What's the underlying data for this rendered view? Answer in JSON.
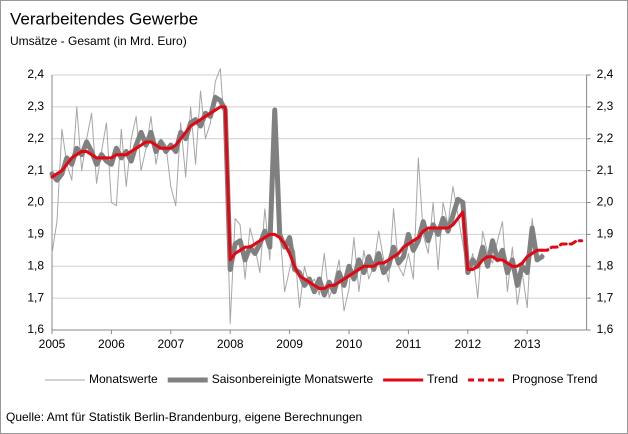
{
  "chart_data": {
    "type": "line",
    "title": "Verarbeitendes Gewerbe",
    "subtitle": "Umsätze - Gesamt (in Mrd. Euro)",
    "source": "Quelle: Amt für Statistik Berlin-Brandenburg, eigene Berechnungen",
    "categories": [
      "2005",
      null,
      null,
      null,
      null,
      null,
      null,
      null,
      null,
      null,
      null,
      null,
      "2006",
      null,
      null,
      null,
      null,
      null,
      null,
      null,
      null,
      null,
      null,
      null,
      "2007",
      null,
      null,
      null,
      null,
      null,
      null,
      null,
      null,
      null,
      null,
      null,
      "2008",
      null,
      null,
      null,
      null,
      null,
      null,
      null,
      null,
      null,
      null,
      null,
      "2009",
      null,
      null,
      null,
      null,
      null,
      null,
      null,
      null,
      null,
      null,
      null,
      "2010",
      null,
      null,
      null,
      null,
      null,
      null,
      null,
      null,
      null,
      null,
      null,
      "2011",
      null,
      null,
      null,
      null,
      null,
      null,
      null,
      null,
      null,
      null,
      null,
      "2012",
      null,
      null,
      null,
      null,
      null,
      null,
      null,
      null,
      null,
      null,
      null,
      "2013",
      null,
      null,
      null,
      null,
      null,
      null,
      null,
      null,
      null,
      null,
      null
    ],
    "ylim": [
      1.6,
      2.4
    ],
    "yticks": [
      {
        "value": 1.6,
        "label": "1,6"
      },
      {
        "value": 1.7,
        "label": "1,7"
      },
      {
        "value": 1.8,
        "label": "1,8"
      },
      {
        "value": 1.9,
        "label": "1,9"
      },
      {
        "value": 2.0,
        "label": "2,0"
      },
      {
        "value": 2.1,
        "label": "2,1"
      },
      {
        "value": 2.2,
        "label": "2,2"
      },
      {
        "value": 2.3,
        "label": "2,3"
      },
      {
        "value": 2.4,
        "label": "2,4"
      }
    ],
    "y2lim": [
      1.6,
      2.4
    ],
    "y2ticks": [
      {
        "value": 1.6,
        "label": "1,6"
      },
      {
        "value": 1.7,
        "label": "1,7"
      },
      {
        "value": 1.8,
        "label": "1,8"
      },
      {
        "value": 1.9,
        "label": "1,9"
      },
      {
        "value": 2.0,
        "label": "2,0"
      },
      {
        "value": 2.1,
        "label": "2,1"
      },
      {
        "value": 2.2,
        "label": "2,2"
      },
      {
        "value": 2.3,
        "label": "2,3"
      },
      {
        "value": 2.4,
        "label": "2,4"
      }
    ],
    "grid": true,
    "legend": "bottom",
    "series": [
      {
        "name": "Monatswerte",
        "color": "#a6a6a6",
        "values": [
          1.84,
          1.94,
          2.23,
          2.12,
          2.07,
          2.3,
          2.1,
          2.2,
          2.28,
          2.06,
          2.16,
          2.25,
          2.0,
          1.99,
          2.23,
          2.05,
          2.2,
          2.27,
          2.1,
          2.17,
          2.27,
          2.12,
          2.2,
          2.18,
          2.05,
          1.99,
          2.25,
          2.08,
          2.3,
          2.12,
          2.35,
          2.2,
          2.25,
          2.38,
          2.42,
          2.2,
          1.62,
          1.95,
          1.93,
          1.76,
          1.92,
          1.86,
          1.78,
          1.98,
          1.82,
          2.2,
          1.92,
          1.72,
          1.79,
          1.85,
          1.67,
          1.8,
          1.74,
          1.76,
          1.71,
          1.84,
          1.7,
          1.75,
          1.82,
          1.66,
          1.73,
          1.89,
          1.72,
          1.85,
          1.76,
          1.8,
          1.91,
          1.82,
          1.75,
          1.98,
          1.8,
          1.77,
          1.84,
          1.76,
          2.14,
          1.9,
          1.84,
          2.0,
          1.79,
          2.0,
          1.93,
          2.05,
          1.96,
          1.87,
          1.78,
          1.84,
          1.7,
          1.91,
          1.84,
          1.81,
          1.88,
          1.94,
          1.72,
          1.86,
          1.68,
          1.78,
          1.67,
          1.95,
          1.82,
          1.84,
          null,
          null,
          null,
          null,
          null,
          null,
          null,
          null
        ]
      },
      {
        "name": "Saisonbereinigte Monatswerte",
        "color": "#808080",
        "values": [
          2.09,
          2.07,
          2.09,
          2.14,
          2.12,
          2.17,
          2.15,
          2.19,
          2.16,
          2.12,
          2.15,
          2.13,
          2.12,
          2.17,
          2.14,
          2.16,
          2.13,
          2.18,
          2.22,
          2.18,
          2.22,
          2.16,
          2.19,
          2.16,
          2.18,
          2.16,
          2.22,
          2.2,
          2.25,
          2.26,
          2.24,
          2.28,
          2.27,
          2.33,
          2.32,
          2.29,
          1.79,
          1.87,
          1.88,
          1.82,
          1.86,
          1.84,
          1.87,
          1.91,
          1.86,
          2.29,
          1.9,
          1.86,
          1.89,
          1.79,
          1.78,
          1.74,
          1.76,
          1.72,
          1.76,
          1.71,
          1.75,
          1.72,
          1.78,
          1.74,
          1.8,
          1.76,
          1.82,
          1.78,
          1.83,
          1.79,
          1.84,
          1.78,
          1.8,
          1.86,
          1.81,
          1.83,
          1.9,
          1.85,
          1.88,
          1.94,
          1.88,
          1.93,
          1.9,
          1.95,
          1.91,
          1.96,
          2.01,
          2.0,
          1.78,
          1.82,
          1.8,
          1.86,
          1.8,
          1.88,
          1.82,
          1.85,
          1.78,
          1.82,
          1.74,
          1.8,
          1.78,
          1.92,
          1.82,
          1.83,
          null,
          null,
          null,
          null,
          null,
          null,
          null,
          null
        ]
      },
      {
        "name": "Trend",
        "color": "#e30613",
        "values": [
          2.08,
          2.09,
          2.1,
          2.12,
          2.14,
          2.15,
          2.16,
          2.16,
          2.15,
          2.14,
          2.14,
          2.14,
          2.14,
          2.15,
          2.15,
          2.15,
          2.16,
          2.17,
          2.18,
          2.19,
          2.19,
          2.18,
          2.17,
          2.17,
          2.17,
          2.18,
          2.2,
          2.22,
          2.24,
          2.25,
          2.26,
          2.27,
          2.28,
          2.29,
          2.3,
          2.3,
          1.82,
          1.84,
          1.85,
          1.86,
          1.86,
          1.87,
          1.88,
          1.89,
          1.9,
          1.9,
          1.89,
          1.87,
          1.84,
          1.8,
          1.77,
          1.76,
          1.75,
          1.74,
          1.73,
          1.73,
          1.74,
          1.74,
          1.75,
          1.76,
          1.77,
          1.78,
          1.79,
          1.8,
          1.8,
          1.8,
          1.81,
          1.81,
          1.82,
          1.83,
          1.84,
          1.86,
          1.87,
          1.88,
          1.89,
          1.91,
          1.92,
          1.92,
          1.92,
          1.92,
          1.92,
          1.93,
          1.95,
          1.97,
          1.79,
          1.79,
          1.8,
          1.82,
          1.83,
          1.83,
          1.82,
          1.82,
          1.81,
          1.8,
          1.8,
          1.81,
          1.83,
          1.84,
          1.85,
          1.85,
          null,
          null,
          null,
          null,
          null,
          null,
          null,
          null
        ]
      },
      {
        "name": "Prognose Trend",
        "color": "#e30613",
        "dashed": true,
        "values": [
          null,
          null,
          null,
          null,
          null,
          null,
          null,
          null,
          null,
          null,
          null,
          null,
          null,
          null,
          null,
          null,
          null,
          null,
          null,
          null,
          null,
          null,
          null,
          null,
          null,
          null,
          null,
          null,
          null,
          null,
          null,
          null,
          null,
          null,
          null,
          null,
          null,
          null,
          null,
          null,
          null,
          null,
          null,
          null,
          null,
          null,
          null,
          null,
          null,
          null,
          null,
          null,
          null,
          null,
          null,
          null,
          null,
          null,
          null,
          null,
          null,
          null,
          null,
          null,
          null,
          null,
          null,
          null,
          null,
          null,
          null,
          null,
          null,
          null,
          null,
          null,
          null,
          null,
          null,
          null,
          null,
          null,
          null,
          null,
          null,
          null,
          null,
          null,
          null,
          null,
          null,
          null,
          null,
          null,
          null,
          null,
          null,
          null,
          null,
          1.85,
          1.85,
          1.86,
          1.86,
          1.87,
          1.87,
          1.87,
          1.88,
          1.88
        ]
      }
    ]
  }
}
